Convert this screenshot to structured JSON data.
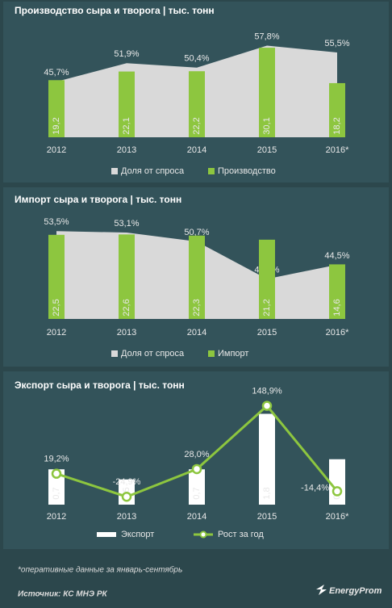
{
  "chart_data": [
    {
      "type": "bar_area",
      "title": "Производство сыра и творога | тыс. тонн",
      "categories": [
        "2012",
        "2013",
        "2014",
        "2015",
        "2016*"
      ],
      "ylim": [
        0,
        38
      ],
      "y2lim": [
        27,
        65
      ],
      "series": [
        {
          "name": "Доля от спроса",
          "color": "#d9d9d9",
          "axis": "y2",
          "values": [
            45.7,
            51.9,
            50.4,
            57.8,
            55.5
          ],
          "value_labels": [
            "45,7%",
            "51,9%",
            "50,4%",
            "57,8%",
            "55,5%"
          ]
        },
        {
          "name": "Производство",
          "color": "#8dc63f",
          "values": [
            19.2,
            22.1,
            22.2,
            30.1,
            18.2
          ],
          "value_labels": [
            "19,2",
            "22,1",
            "22,2",
            "30,1",
            "18,2"
          ]
        }
      ]
    },
    {
      "type": "bar_area",
      "title": "Импорт сыра и творога | тыс. тонн",
      "categories": [
        "2012",
        "2013",
        "2014",
        "2015",
        "2016*"
      ],
      "ylim": [
        0,
        27
      ],
      "y2lim": [
        30,
        57
      ],
      "series": [
        {
          "name": "Доля от спроса",
          "color": "#d9d9d9",
          "axis": "y2",
          "values": [
            53.5,
            53.1,
            50.7,
            40.7,
            44.5
          ],
          "value_labels": [
            "53,5%",
            "53,1%",
            "50,7%",
            "40,7%",
            "44,5%"
          ]
        },
        {
          "name": "Импорт",
          "color": "#8dc63f",
          "values": [
            22.5,
            22.6,
            22.3,
            21.2,
            14.6
          ],
          "value_labels": [
            "22,5",
            "22,6",
            "22,3",
            "21,2",
            "14,6"
          ]
        }
      ]
    },
    {
      "type": "bar_line",
      "title": "Экспорт сыра и творога | тыс. тонн",
      "categories": [
        "2012",
        "2013",
        "2014",
        "2015",
        "2016*"
      ],
      "ylim": [
        0,
        2
      ],
      "y2lim": [
        -40,
        153
      ],
      "series": [
        {
          "name": "Экспорт",
          "color": "#ffffff",
          "values": [
            0.7,
            0.5,
            0.7,
            1.8,
            0.9
          ],
          "value_labels": [
            "0,7",
            "0,5",
            "0,7",
            "1,8",
            "0,9"
          ]
        },
        {
          "name": "Рост за год",
          "color": "#8dc63f",
          "axis": "y2",
          "values": [
            19.2,
            -24.9,
            28.0,
            148.9,
            -14.4
          ],
          "value_labels": [
            "19,2%",
            "-24,9%",
            "28,0%",
            "148,9%",
            "-14,4%"
          ]
        }
      ]
    }
  ],
  "footnote": "*оперативные данные за январь-сентябрь",
  "source": "Источник: КС МНЭ РК",
  "logo": "EnergyProm"
}
